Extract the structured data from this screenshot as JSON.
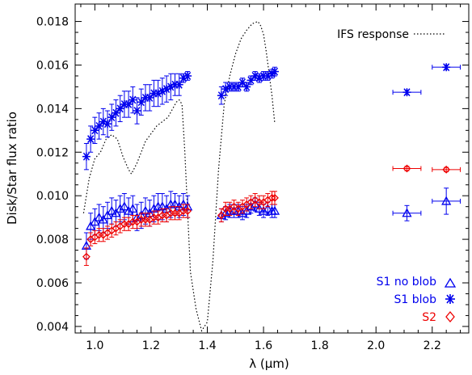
{
  "chart_data": {
    "type": "scatter",
    "xlabel": "λ (μm)",
    "ylabel": "Disk/Star flux ratio",
    "xlim": [
      0.93,
      2.33
    ],
    "ylim": [
      0.0037,
      0.0188
    ],
    "xticks": [
      1.0,
      1.2,
      1.4,
      1.6,
      1.8,
      2.0,
      2.2
    ],
    "xtick_labels": [
      "1.0",
      "1.2",
      "1.4",
      "1.6",
      "1.8",
      "2.0",
      "2.2"
    ],
    "yticks": [
      0.004,
      0.006,
      0.008,
      0.01,
      0.012,
      0.014,
      0.016,
      0.018
    ],
    "ytick_labels": [
      "0.004",
      "0.006",
      "0.008",
      "0.010",
      "0.012",
      "0.014",
      "0.016",
      "0.018"
    ],
    "grid": false,
    "legend_position": "bottom-right",
    "ifs_response": {
      "name": "IFS response",
      "color": "#000000",
      "style": "dotted",
      "x": [
        0.96,
        0.98,
        1.0,
        1.02,
        1.04,
        1.06,
        1.08,
        1.1,
        1.12,
        1.13,
        1.15,
        1.18,
        1.22,
        1.26,
        1.29,
        1.3,
        1.31,
        1.32,
        1.34,
        1.36,
        1.38,
        1.4,
        1.42,
        1.44,
        1.46,
        1.48,
        1.5,
        1.52,
        1.54,
        1.56,
        1.58,
        1.59,
        1.6,
        1.61,
        1.62,
        1.63,
        1.64
      ],
      "y": [
        0.0092,
        0.0108,
        0.0117,
        0.012,
        0.0126,
        0.0128,
        0.0126,
        0.0118,
        0.0112,
        0.011,
        0.0115,
        0.0125,
        0.0132,
        0.0136,
        0.0143,
        0.0144,
        0.0142,
        0.012,
        0.0065,
        0.0048,
        0.0038,
        0.0042,
        0.007,
        0.0112,
        0.0142,
        0.0155,
        0.0165,
        0.0172,
        0.0176,
        0.0179,
        0.018,
        0.0178,
        0.0174,
        0.0166,
        0.0156,
        0.0146,
        0.0133
      ]
    },
    "series": [
      {
        "name": "S1 no blob",
        "marker": "triangle",
        "color": "#0000ee",
        "points": [
          [
            0.97,
            0.0077,
            0.0006,
            0
          ],
          [
            0.985,
            0.0086,
            0.0006,
            0
          ],
          [
            1.0,
            0.0088,
            0.0006,
            0
          ],
          [
            1.015,
            0.009,
            0.0006,
            0
          ],
          [
            1.03,
            0.0089,
            0.0006,
            0
          ],
          [
            1.045,
            0.0091,
            0.0006,
            0
          ],
          [
            1.06,
            0.0093,
            0.0006,
            0
          ],
          [
            1.075,
            0.0092,
            0.0006,
            0
          ],
          [
            1.09,
            0.0094,
            0.0006,
            0
          ],
          [
            1.105,
            0.0095,
            0.0006,
            0
          ],
          [
            1.12,
            0.0093,
            0.0006,
            0
          ],
          [
            1.135,
            0.0094,
            0.0006,
            0
          ],
          [
            1.15,
            0.009,
            0.0006,
            0
          ],
          [
            1.165,
            0.0091,
            0.0006,
            0
          ],
          [
            1.18,
            0.0093,
            0.0006,
            0
          ],
          [
            1.195,
            0.0092,
            0.0006,
            0
          ],
          [
            1.21,
            0.0094,
            0.0006,
            0
          ],
          [
            1.225,
            0.0095,
            0.0006,
            0
          ],
          [
            1.24,
            0.0095,
            0.0006,
            0
          ],
          [
            1.255,
            0.0094,
            0.0006,
            0
          ],
          [
            1.27,
            0.0096,
            0.0006,
            0
          ],
          [
            1.285,
            0.0096,
            0.0005,
            0
          ],
          [
            1.3,
            0.0095,
            0.0005,
            0
          ],
          [
            1.315,
            0.0096,
            0.0005,
            0
          ],
          [
            1.33,
            0.0095,
            0.0005,
            0
          ],
          [
            1.45,
            0.0091,
            0.0003,
            0
          ],
          [
            1.465,
            0.0092,
            0.0003,
            0
          ],
          [
            1.48,
            0.0093,
            0.0003,
            0
          ],
          [
            1.495,
            0.0093,
            0.0003,
            0
          ],
          [
            1.51,
            0.0093,
            0.0003,
            0
          ],
          [
            1.525,
            0.0092,
            0.0003,
            0
          ],
          [
            1.54,
            0.0093,
            0.0003,
            0
          ],
          [
            1.555,
            0.0095,
            0.0003,
            0
          ],
          [
            1.57,
            0.0096,
            0.0003,
            0
          ],
          [
            1.585,
            0.0094,
            0.0003,
            0
          ],
          [
            1.6,
            0.0093,
            0.0003,
            0
          ],
          [
            1.615,
            0.0094,
            0.0003,
            0
          ],
          [
            1.63,
            0.0093,
            0.0003,
            0
          ],
          [
            1.64,
            0.0093,
            0.0003,
            0
          ],
          [
            2.11,
            0.0092,
            0.00035,
            0.05
          ],
          [
            2.25,
            0.00975,
            0.0006,
            0.05
          ]
        ]
      },
      {
        "name": "S1 blob",
        "marker": "asterisk",
        "color": "#0000ee",
        "points": [
          [
            0.97,
            0.0118,
            0.0006,
            0
          ],
          [
            0.985,
            0.0126,
            0.0006,
            0
          ],
          [
            1.0,
            0.013,
            0.0006,
            0
          ],
          [
            1.015,
            0.0132,
            0.0006,
            0
          ],
          [
            1.03,
            0.0134,
            0.0006,
            0
          ],
          [
            1.045,
            0.0133,
            0.0006,
            0
          ],
          [
            1.06,
            0.0136,
            0.0006,
            0
          ],
          [
            1.075,
            0.0138,
            0.0006,
            0
          ],
          [
            1.09,
            0.014,
            0.0006,
            0
          ],
          [
            1.105,
            0.0142,
            0.0006,
            0
          ],
          [
            1.12,
            0.0142,
            0.0006,
            0
          ],
          [
            1.135,
            0.0144,
            0.0006,
            0
          ],
          [
            1.15,
            0.0139,
            0.0006,
            0
          ],
          [
            1.165,
            0.0143,
            0.0006,
            0
          ],
          [
            1.18,
            0.0145,
            0.0006,
            0
          ],
          [
            1.195,
            0.0145,
            0.0006,
            0
          ],
          [
            1.21,
            0.0147,
            0.0006,
            0
          ],
          [
            1.225,
            0.0147,
            0.0006,
            0
          ],
          [
            1.24,
            0.0148,
            0.0006,
            0
          ],
          [
            1.255,
            0.0149,
            0.0006,
            0
          ],
          [
            1.27,
            0.015,
            0.0006,
            0
          ],
          [
            1.285,
            0.0151,
            0.0005,
            0
          ],
          [
            1.3,
            0.0151,
            0.0005,
            0
          ],
          [
            1.315,
            0.0154,
            0.0002,
            0
          ],
          [
            1.33,
            0.0155,
            0.0002,
            0
          ],
          [
            1.45,
            0.0146,
            0.0004,
            0
          ],
          [
            1.465,
            0.0149,
            0.0003,
            0
          ],
          [
            1.48,
            0.015,
            0.0002,
            0
          ],
          [
            1.495,
            0.015,
            0.0002,
            0
          ],
          [
            1.51,
            0.015,
            0.0002,
            0
          ],
          [
            1.525,
            0.0152,
            0.0002,
            0
          ],
          [
            1.54,
            0.015,
            0.0002,
            0
          ],
          [
            1.555,
            0.0153,
            0.0002,
            0
          ],
          [
            1.57,
            0.0155,
            0.0002,
            0
          ],
          [
            1.585,
            0.0154,
            0.0002,
            0
          ],
          [
            1.6,
            0.0155,
            0.0002,
            0
          ],
          [
            1.615,
            0.0155,
            0.0002,
            0
          ],
          [
            1.63,
            0.0156,
            0.0002,
            0
          ],
          [
            1.64,
            0.0157,
            0.0002,
            0
          ],
          [
            2.11,
            0.01475,
            0.0001,
            0.05
          ],
          [
            2.25,
            0.0159,
            0.0001,
            0.05
          ]
        ]
      },
      {
        "name": "S2",
        "marker": "diamond",
        "color": "#ee0000",
        "points": [
          [
            0.97,
            0.0072,
            0.0004,
            0
          ],
          [
            0.985,
            0.008,
            0.0003,
            0
          ],
          [
            1.0,
            0.0081,
            0.0003,
            0
          ],
          [
            1.015,
            0.0082,
            0.0003,
            0
          ],
          [
            1.03,
            0.0082,
            0.0003,
            0
          ],
          [
            1.045,
            0.0083,
            0.0003,
            0
          ],
          [
            1.06,
            0.0084,
            0.0003,
            0
          ],
          [
            1.075,
            0.0085,
            0.0003,
            0
          ],
          [
            1.09,
            0.0086,
            0.0003,
            0
          ],
          [
            1.105,
            0.0087,
            0.0003,
            0
          ],
          [
            1.12,
            0.0087,
            0.0003,
            0
          ],
          [
            1.135,
            0.0088,
            0.0003,
            0
          ],
          [
            1.15,
            0.0088,
            0.0003,
            0
          ],
          [
            1.165,
            0.0089,
            0.0003,
            0
          ],
          [
            1.18,
            0.0089,
            0.0003,
            0
          ],
          [
            1.195,
            0.0089,
            0.0003,
            0
          ],
          [
            1.21,
            0.009,
            0.0003,
            0
          ],
          [
            1.225,
            0.009,
            0.0003,
            0
          ],
          [
            1.24,
            0.0091,
            0.0003,
            0
          ],
          [
            1.255,
            0.0091,
            0.0003,
            0
          ],
          [
            1.27,
            0.0092,
            0.0003,
            0
          ],
          [
            1.285,
            0.0092,
            0.0003,
            0
          ],
          [
            1.3,
            0.0092,
            0.0003,
            0
          ],
          [
            1.315,
            0.0093,
            0.0003,
            0
          ],
          [
            1.33,
            0.0093,
            0.0003,
            0
          ],
          [
            1.45,
            0.0091,
            0.0003,
            0
          ],
          [
            1.465,
            0.0094,
            0.0003,
            0
          ],
          [
            1.48,
            0.0094,
            0.0003,
            0
          ],
          [
            1.495,
            0.0095,
            0.0003,
            0
          ],
          [
            1.51,
            0.0094,
            0.0003,
            0
          ],
          [
            1.525,
            0.0095,
            0.0003,
            0
          ],
          [
            1.54,
            0.0096,
            0.0003,
            0
          ],
          [
            1.555,
            0.0097,
            0.0003,
            0
          ],
          [
            1.57,
            0.0098,
            0.0003,
            0
          ],
          [
            1.585,
            0.0097,
            0.0003,
            0
          ],
          [
            1.6,
            0.0097,
            0.0003,
            0
          ],
          [
            1.615,
            0.0098,
            0.0003,
            0
          ],
          [
            1.63,
            0.0099,
            0.0003,
            0
          ],
          [
            1.64,
            0.0099,
            0.0003,
            0
          ],
          [
            2.11,
            0.01125,
            0.0001,
            0.05
          ],
          [
            2.25,
            0.0112,
            0.0001,
            0.05
          ]
        ]
      }
    ]
  }
}
